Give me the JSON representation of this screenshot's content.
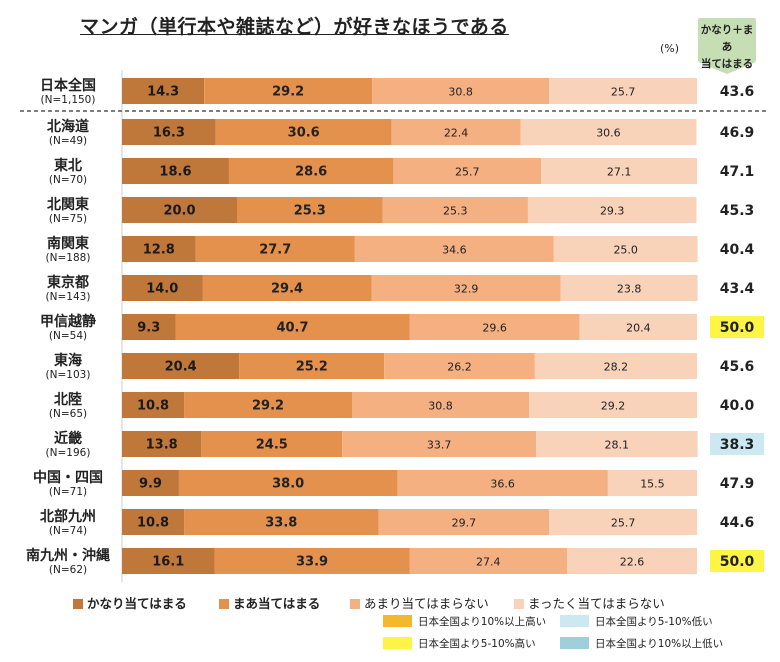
{
  "title": "マンガ（単行本や雑誌など）が好きなほうである",
  "unit": "(%)",
  "total_header": [
    "かなり＋まあ",
    "当てはまる"
  ],
  "colors": {
    "s1": "#c0773a",
    "s2": "#e5914e",
    "s3": "#f5b082",
    "s4": "#f9d2ba",
    "hl_high10": "#f3b82c",
    "hl_high5": "#fef445",
    "hl_low5": "#cce9f1",
    "hl_low10": "#9fcfdb",
    "header_box": "#c6deb3"
  },
  "chart_data": {
    "type": "bar",
    "orientation": "horizontal",
    "stacked": true,
    "xlim": [
      0,
      100
    ],
    "categories": [
      {
        "name": "日本全国",
        "n": "(N=1,150)"
      },
      {
        "name": "北海道",
        "n": "(N=49)"
      },
      {
        "name": "東北",
        "n": "(N=70)"
      },
      {
        "name": "北関東",
        "n": "(N=75)"
      },
      {
        "name": "南関東",
        "n": "(N=188)"
      },
      {
        "name": "東京都",
        "n": "(N=143)"
      },
      {
        "name": "甲信越静",
        "n": "(N=54)"
      },
      {
        "name": "東海",
        "n": "(N=103)"
      },
      {
        "name": "北陸",
        "n": "(N=65)"
      },
      {
        "name": "近畿",
        "n": "(N=196)"
      },
      {
        "name": "中国・四国",
        "n": "(N=71)"
      },
      {
        "name": "北部九州",
        "n": "(N=74)"
      },
      {
        "name": "南九州・沖縄",
        "n": "(N=62)"
      }
    ],
    "series": [
      {
        "name": "かなり当てはまる",
        "values": [
          14.3,
          16.3,
          18.6,
          20.0,
          12.8,
          14.0,
          9.3,
          20.4,
          10.8,
          13.8,
          9.9,
          10.8,
          16.1
        ]
      },
      {
        "name": "まあ当てはまる",
        "values": [
          29.2,
          30.6,
          28.6,
          25.3,
          27.7,
          29.4,
          40.7,
          25.2,
          29.2,
          24.5,
          38.0,
          33.8,
          33.9
        ]
      },
      {
        "name": "あまり当てはまらない",
        "values": [
          30.8,
          22.4,
          25.7,
          25.3,
          34.6,
          32.9,
          29.6,
          26.2,
          30.8,
          33.7,
          36.6,
          29.7,
          27.4
        ]
      },
      {
        "name": "まったく当てはまらない",
        "values": [
          25.7,
          30.6,
          27.1,
          29.3,
          25.0,
          23.8,
          20.4,
          28.2,
          29.2,
          28.1,
          15.5,
          25.7,
          22.6
        ]
      }
    ],
    "totals": [
      {
        "value": "43.6",
        "highlight": ""
      },
      {
        "value": "46.9",
        "highlight": ""
      },
      {
        "value": "47.1",
        "highlight": ""
      },
      {
        "value": "45.3",
        "highlight": ""
      },
      {
        "value": "40.4",
        "highlight": ""
      },
      {
        "value": "43.4",
        "highlight": ""
      },
      {
        "value": "50.0",
        "highlight": "high5"
      },
      {
        "value": "45.6",
        "highlight": ""
      },
      {
        "value": "40.0",
        "highlight": ""
      },
      {
        "value": "38.3",
        "highlight": "low5"
      },
      {
        "value": "47.9",
        "highlight": ""
      },
      {
        "value": "44.6",
        "highlight": ""
      },
      {
        "value": "50.0",
        "highlight": "high5"
      }
    ]
  },
  "legend": {
    "series": [
      "かなり当てはまる",
      "まあ当てはまる",
      "あまり当てはまらない",
      "まったく当てはまらない"
    ],
    "highlights": [
      {
        "key": "high10",
        "label": "日本全国より10%以上高い"
      },
      {
        "key": "low5",
        "label": "日本全国より5-10%低い"
      },
      {
        "key": "high5",
        "label": "日本全国より5-10%高い"
      },
      {
        "key": "low10",
        "label": "日本全国より10%以上低い"
      }
    ]
  }
}
